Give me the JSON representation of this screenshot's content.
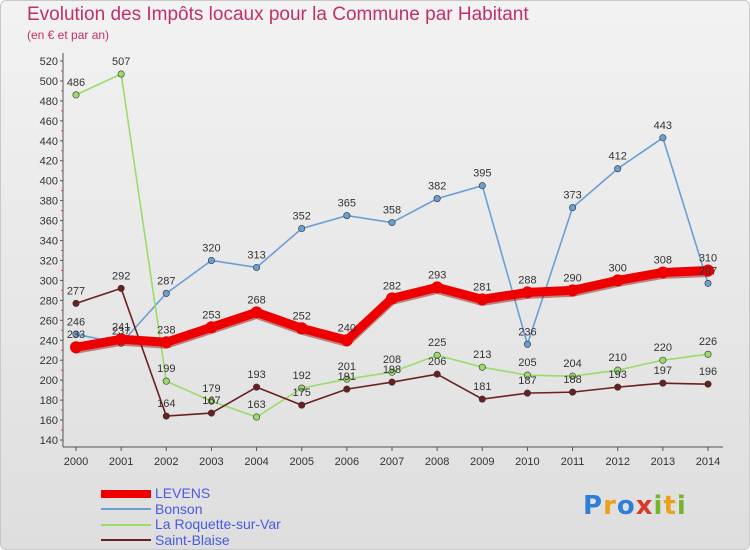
{
  "title": "Evolution des Impôts locaux pour la Commune par Habitant",
  "subtitle": "(en € et par an)",
  "brand": {
    "letters": [
      "P",
      "r",
      "o",
      "x",
      "i",
      "t",
      "i"
    ],
    "colors": [
      "#2f7fd6",
      "#e9a21a",
      "#2f7fd6",
      "#d9392b",
      "#79b32e",
      "#e9a21a",
      "#79b32e"
    ]
  },
  "chart_data": {
    "type": "line",
    "title": "Evolution des Impôts locaux pour la Commune par Habitant",
    "subtitle": "(en € et par an)",
    "x": [
      "2000",
      "2001",
      "2002",
      "2003",
      "2004",
      "2005",
      "2006",
      "2007",
      "2008",
      "2009",
      "2010",
      "2011",
      "2012",
      "2013",
      "2014"
    ],
    "ylim": [
      140,
      520
    ],
    "yticks": [
      140,
      160,
      180,
      200,
      220,
      240,
      260,
      280,
      300,
      320,
      340,
      360,
      380,
      400,
      420,
      440,
      460,
      480,
      500,
      520
    ],
    "grid": false,
    "legend_position": "bottom-left",
    "series": [
      {
        "name": "LEVENS",
        "color": "#ee0000",
        "values": [
          233,
          241,
          238,
          253,
          268,
          252,
          240,
          282,
          293,
          281,
          288,
          290,
          300,
          308,
          310
        ]
      },
      {
        "name": "Bonson",
        "color": "#6a9fd3",
        "values": [
          246,
          237,
          287,
          320,
          313,
          352,
          365,
          358,
          382,
          395,
          236,
          373,
          412,
          443,
          297
        ]
      },
      {
        "name": "La Roquette-sur-Var",
        "color": "#9bdb6a",
        "values": [
          486,
          507,
          199,
          179,
          163,
          192,
          201,
          208,
          225,
          213,
          205,
          204,
          210,
          220,
          226
        ]
      },
      {
        "name": "Saint-Blaise",
        "color": "#6b2020",
        "values": [
          277,
          292,
          164,
          167,
          193,
          175,
          191,
          198,
          206,
          181,
          187,
          188,
          193,
          197,
          196
        ]
      }
    ]
  }
}
